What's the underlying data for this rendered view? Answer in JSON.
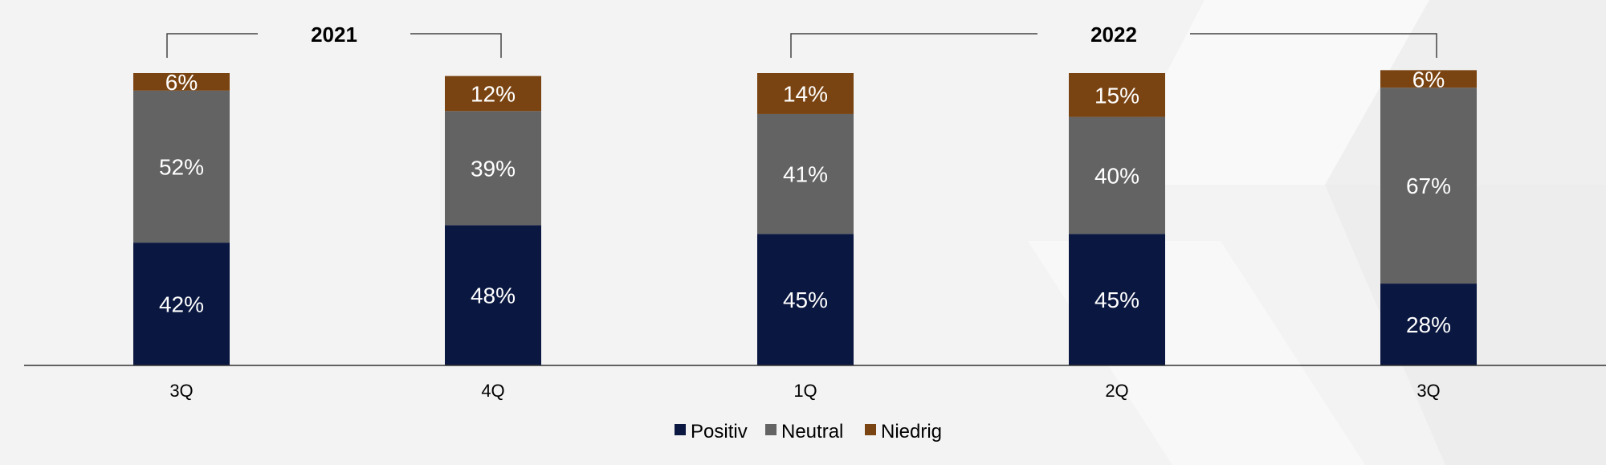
{
  "chart_data": {
    "type": "bar",
    "stacked": true,
    "categories": [
      "3Q",
      "4Q",
      "1Q",
      "2Q",
      "3Q"
    ],
    "series": [
      {
        "name": "Positiv",
        "values": [
          42,
          48,
          45,
          45,
          28
        ],
        "color": "#0a1740"
      },
      {
        "name": "Neutral",
        "values": [
          52,
          39,
          41,
          40,
          67
        ],
        "color": "#636363"
      },
      {
        "name": "Niedrig",
        "values": [
          6,
          12,
          14,
          15,
          6
        ],
        "color": "#7a4412"
      }
    ],
    "value_suffix": "%",
    "ylim": [
      0,
      100
    ],
    "groups": [
      {
        "label": "2021",
        "from": 0,
        "to": 1
      },
      {
        "label": "2022",
        "from": 2,
        "to": 4
      }
    ],
    "legend_position": "bottom-center",
    "grid": false
  },
  "colors": {
    "background": "#f3f3f3",
    "axis": "#333333",
    "bracket": "#444444"
  }
}
